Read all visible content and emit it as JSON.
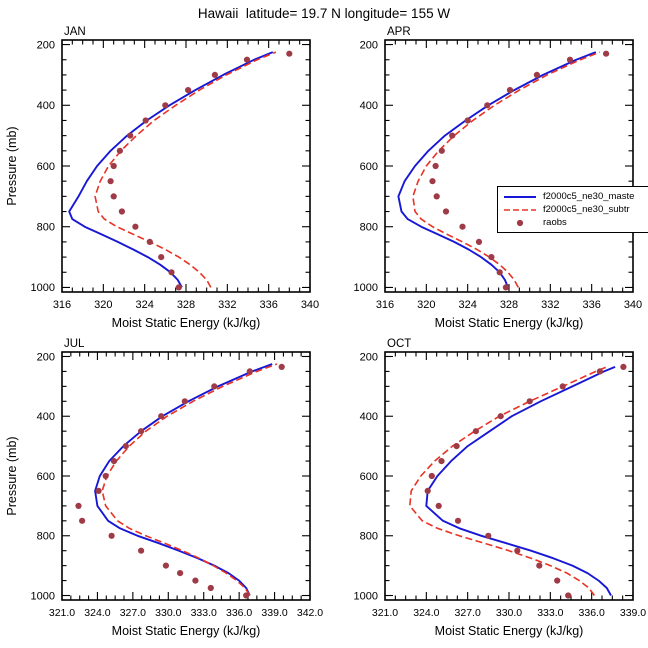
{
  "title": "Hawaii  latitude= 19.7 N longitude= 155 W",
  "legend": {
    "items": [
      {
        "label": "f2000c5_ne30_maste",
        "series": "master"
      },
      {
        "label": "f2000c5_ne30_subtr",
        "series": "subtro"
      },
      {
        "label": "raobs",
        "series": "raobs"
      }
    ]
  },
  "chart_data": {
    "type": "line",
    "title": "Hawaii  latitude= 19.7 N longitude= 155 W",
    "xlabel": "Moist Static Energy (kJ/kg)",
    "ylabel": "Pressure (mb)",
    "y_axis": {
      "ticks": [
        200,
        400,
        600,
        800,
        1000
      ],
      "range": [
        200,
        1000
      ],
      "inverted": true
    },
    "colors": {
      "master": "#1717d6",
      "subtro": "#e93223",
      "raobs": "#9e3b47"
    },
    "panels": [
      {
        "title": "JAN",
        "xlim": [
          316,
          340
        ],
        "x_ticks": [
          316,
          320,
          324,
          328,
          332,
          336,
          340
        ],
        "x_tick_labels": [
          "316",
          "320",
          "324",
          "328",
          "332",
          "336",
          "340"
        ],
        "series": {
          "master": {
            "pressure": [
              1000,
              975,
              950,
              925,
              900,
              875,
              850,
              825,
              800,
              775,
              750,
              700,
              650,
              600,
              550,
              500,
              450,
              400,
              350,
              300,
              250,
              225
            ],
            "values": [
              327.6,
              327.2,
              326.5,
              325.5,
              324.3,
              322.9,
              321.4,
              319.8,
              318.2,
              317.0,
              316.7,
              317.6,
              318.4,
              319.4,
              320.7,
              322.3,
              324.2,
              326.4,
              328.9,
              331.6,
              334.6,
              336.4
            ]
          },
          "subtro": {
            "pressure": [
              1000,
              975,
              950,
              925,
              900,
              875,
              850,
              825,
              800,
              775,
              750,
              700,
              650,
              600,
              550,
              500,
              450,
              400,
              350,
              300,
              250,
              225
            ],
            "values": [
              330.4,
              330.0,
              329.3,
              328.4,
              327.3,
              326.0,
              324.5,
              322.9,
              321.3,
              320.1,
              319.5,
              319.2,
              319.7,
              320.5,
              321.7,
              323.2,
              324.9,
              327.0,
              329.3,
              331.9,
              334.9,
              336.7
            ]
          },
          "raobs": {
            "pressure": [
              1000,
              950,
              900,
              850,
              800,
              750,
              700,
              650,
              600,
              550,
              500,
              450,
              400,
              350,
              300,
              250,
              230
            ],
            "values": [
              327.3,
              326.6,
              325.6,
              324.5,
              323.1,
              321.8,
              321.0,
              320.7,
              321.0,
              321.6,
              322.6,
              324.1,
              326.0,
              328.2,
              330.8,
              333.9,
              338.0
            ]
          }
        }
      },
      {
        "title": "APR",
        "xlim": [
          316,
          340
        ],
        "x_ticks": [
          316,
          320,
          324,
          328,
          332,
          336,
          340
        ],
        "x_tick_labels": [
          "316",
          "320",
          "324",
          "328",
          "332",
          "336",
          "340"
        ],
        "series": {
          "master": {
            "pressure": [
              1000,
              975,
              950,
              925,
              900,
              875,
              850,
              825,
              800,
              775,
              750,
              700,
              650,
              600,
              550,
              500,
              450,
              400,
              350,
              300,
              250,
              225
            ],
            "values": [
              327.9,
              327.6,
              327.1,
              326.3,
              325.3,
              324.1,
              322.7,
              321.1,
              319.5,
              318.2,
              317.6,
              317.3,
              317.9,
              318.9,
              320.2,
              321.8,
              323.8,
              326.0,
              328.5,
              331.3,
              334.5,
              336.4
            ]
          },
          "subtro": {
            "pressure": [
              1000,
              975,
              950,
              925,
              900,
              875,
              850,
              825,
              800,
              775,
              750,
              700,
              650,
              600,
              550,
              500,
              450,
              400,
              350,
              300,
              250,
              225
            ],
            "values": [
              328.9,
              328.5,
              327.9,
              327.1,
              326.1,
              324.9,
              323.5,
              322.0,
              320.6,
              319.5,
              318.9,
              318.7,
              319.2,
              320.0,
              321.2,
              322.7,
              324.5,
              326.6,
              329.0,
              331.7,
              334.9,
              336.8
            ]
          },
          "raobs": {
            "pressure": [
              1000,
              950,
              900,
              850,
              800,
              750,
              700,
              650,
              600,
              550,
              500,
              450,
              400,
              350,
              300,
              250,
              230
            ],
            "values": [
              327.7,
              327.1,
              326.3,
              325.1,
              323.5,
              321.9,
              321.0,
              320.6,
              320.9,
              321.5,
              322.5,
              324.0,
              325.9,
              328.1,
              330.7,
              333.9,
              337.4
            ]
          }
        }
      },
      {
        "title": "JUL",
        "xlim": [
          321,
          342
        ],
        "x_ticks": [
          321,
          324,
          327,
          330,
          333,
          336,
          339,
          342
        ],
        "x_tick_labels": [
          "321.0",
          "324.0",
          "327.0",
          "330.0",
          "333.0",
          "336.0",
          "339.0",
          "342.0"
        ],
        "series": {
          "master": {
            "pressure": [
              1000,
              975,
              950,
              925,
              900,
              875,
              850,
              825,
              800,
              775,
              750,
              700,
              650,
              600,
              550,
              500,
              450,
              400,
              350,
              300,
              250,
              225
            ],
            "values": [
              336.9,
              336.6,
              336.0,
              335.1,
              333.9,
              332.5,
              330.9,
              329.2,
              327.4,
              325.9,
              324.9,
              324.0,
              323.8,
              324.2,
              325.0,
              326.2,
              327.7,
              329.5,
              331.7,
              334.2,
              337.1,
              338.8
            ]
          },
          "subtro": {
            "pressure": [
              1000,
              975,
              950,
              925,
              900,
              875,
              850,
              825,
              800,
              775,
              750,
              700,
              650,
              600,
              550,
              500,
              450,
              400,
              350,
              300,
              250,
              225
            ],
            "values": [
              336.9,
              336.5,
              335.8,
              334.9,
              333.8,
              332.6,
              331.2,
              329.7,
              328.1,
              326.7,
              325.7,
              324.7,
              324.4,
              324.8,
              325.6,
              326.7,
              328.1,
              329.9,
              332.1,
              334.6,
              337.5,
              339.2
            ]
          },
          "raobs": {
            "pressure": [
              1000,
              975,
              950,
              925,
              900,
              850,
              800,
              750,
              700,
              650,
              600,
              550,
              500,
              450,
              400,
              350,
              300,
              250,
              235
            ],
            "values": [
              336.6,
              333.6,
              332.3,
              331.0,
              329.8,
              327.7,
              325.2,
              322.7,
              322.4,
              324.1,
              324.7,
              325.4,
              326.4,
              327.7,
              329.4,
              331.4,
              333.9,
              336.9,
              339.6
            ]
          }
        }
      },
      {
        "title": "OCT",
        "xlim": [
          321,
          339
        ],
        "x_ticks": [
          321,
          324,
          327,
          330,
          333,
          336,
          339
        ],
        "x_tick_labels": [
          "321.0",
          "324.0",
          "327.0",
          "330.0",
          "333.0",
          "336.0",
          "339.0"
        ],
        "series": {
          "master": {
            "pressure": [
              1000,
              975,
              950,
              925,
              900,
              875,
              850,
              825,
              800,
              775,
              750,
              700,
              650,
              600,
              550,
              500,
              450,
              400,
              350,
              300,
              250,
              235
            ],
            "values": [
              337.4,
              337.1,
              336.5,
              335.7,
              334.6,
              333.2,
              331.6,
              329.8,
              328.0,
              326.4,
              325.2,
              324.0,
              324.1,
              324.8,
              325.8,
              327.0,
              328.6,
              330.2,
              332.3,
              334.6,
              336.9,
              337.7
            ]
          },
          "subtro": {
            "pressure": [
              1000,
              975,
              950,
              925,
              900,
              875,
              850,
              825,
              800,
              775,
              750,
              700,
              650,
              600,
              550,
              500,
              450,
              400,
              350,
              300,
              250,
              235
            ],
            "values": [
              336.2,
              335.8,
              335.1,
              334.2,
              333.0,
              331.6,
              330.0,
              328.2,
              326.4,
              324.8,
              323.7,
              322.8,
              322.9,
              323.6,
              324.6,
              325.9,
              327.5,
              329.3,
              331.5,
              333.9,
              336.3,
              337.1
            ]
          },
          "raobs": {
            "pressure": [
              1000,
              950,
              900,
              850,
              800,
              750,
              700,
              650,
              600,
              550,
              500,
              450,
              400,
              350,
              300,
              250,
              235
            ],
            "values": [
              334.3,
              333.5,
              332.2,
              330.6,
              328.5,
              326.3,
              324.9,
              324.1,
              324.4,
              325.1,
              326.2,
              327.6,
              329.4,
              331.5,
              333.9,
              336.6,
              338.3
            ]
          }
        }
      }
    ]
  }
}
